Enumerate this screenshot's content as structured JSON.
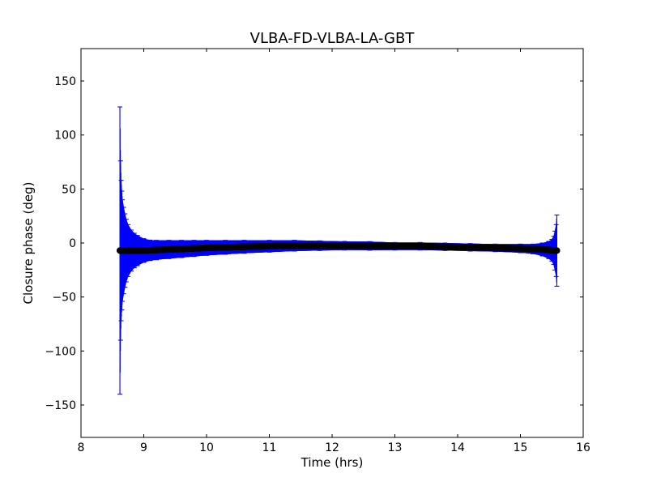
{
  "chart_data": {
    "type": "scatter",
    "title": "VLBA-FD-VLBA-LA-GBT",
    "xlabel": "Time (hrs)",
    "ylabel": "Closure phase (deg)",
    "xlim": [
      8,
      16
    ],
    "ylim": [
      -180,
      180
    ],
    "xticks": [
      8,
      9,
      10,
      11,
      12,
      13,
      14,
      15,
      16
    ],
    "yticks": [
      -150,
      -100,
      -50,
      0,
      50,
      100,
      150
    ],
    "xtick_labels": [
      "8",
      "9",
      "10",
      "11",
      "12",
      "13",
      "14",
      "15",
      "16"
    ],
    "ytick_labels": [
      "−150",
      "−100",
      "−50",
      "0",
      "50",
      "100",
      "150"
    ],
    "grid": false,
    "colors": {
      "points": "#000000",
      "errorbars": "#0000ff"
    },
    "series": [
      {
        "x": [
          8.62,
          8.63,
          8.64,
          8.65,
          8.66,
          8.68,
          8.7,
          8.72,
          8.75,
          8.8,
          8.85,
          8.9,
          9.0,
          9.1,
          9.2,
          9.4,
          9.6,
          9.8,
          10.0,
          10.3,
          10.6,
          11.0,
          11.4,
          11.8,
          12.2,
          12.6,
          13.0,
          13.4,
          13.8,
          14.2,
          14.6,
          15.0,
          15.2,
          15.35,
          15.45,
          15.5,
          15.53,
          15.55,
          15.57,
          15.58
        ],
        "y": [
          -7,
          -7,
          -7,
          -7,
          -7,
          -7,
          -7,
          -7,
          -7,
          -7,
          -7,
          -7,
          -7,
          -6.8,
          -6.5,
          -6,
          -5.5,
          -5,
          -4.5,
          -4,
          -3.5,
          -3,
          -2.5,
          -2.5,
          -2.5,
          -2.7,
          -3,
          -3,
          -3.5,
          -4,
          -4.5,
          -5,
          -5.5,
          -6,
          -6.5,
          -6.7,
          -6.8,
          -7,
          -7,
          -7
        ],
        "err": [
          133,
          83,
          65,
          55,
          47,
          40,
          34,
          29,
          24,
          19,
          16,
          14,
          11,
          9.5,
          9,
          8.5,
          8,
          7.5,
          7,
          6.5,
          6,
          5.5,
          5,
          4.5,
          4,
          4,
          3.5,
          3.5,
          3.5,
          3.5,
          3.5,
          4,
          4.5,
          6,
          8,
          10,
          13,
          18,
          24,
          33
        ]
      }
    ]
  }
}
